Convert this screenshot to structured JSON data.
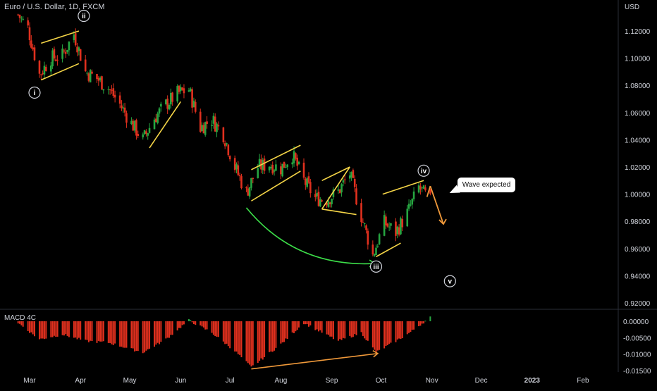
{
  "header": {
    "symbol_title": "Euro / U.S. Dollar, 1D, FXCM",
    "currency": "USD"
  },
  "indicator": {
    "name": "MACD 4C"
  },
  "callout": {
    "text": "Wave expected"
  },
  "wave_labels": [
    "i",
    "ii",
    "iii",
    "iv",
    "v"
  ],
  "chart_data": [
    {
      "type": "candlestick",
      "title": "Euro / U.S. Dollar, 1D, FXCM",
      "ylabel": "USD",
      "ylim": [
        0.914,
        1.135
      ],
      "yticks": [
        "1.12000",
        "1.10000",
        "1.08000",
        "1.06000",
        "1.04000",
        "1.02000",
        "1.00000",
        "0.98000",
        "0.96000",
        "0.94000",
        "0.92000"
      ],
      "xticks": [
        "Mar",
        "Apr",
        "May",
        "Jun",
        "Jul",
        "Aug",
        "Sep",
        "Oct",
        "Nov",
        "Dec",
        "2023",
        "Feb"
      ],
      "close_path": [
        [
          "2022-02-22",
          1.132
        ],
        [
          "2022-02-28",
          1.122
        ],
        [
          "2022-03-07",
          1.088
        ],
        [
          "2022-03-14",
          1.1
        ],
        [
          "2022-03-21",
          1.102
        ],
        [
          "2022-03-28",
          1.118
        ],
        [
          "2022-04-04",
          1.09
        ],
        [
          "2022-04-11",
          1.085
        ],
        [
          "2022-04-18",
          1.078
        ],
        [
          "2022-04-25",
          1.066
        ],
        [
          "2022-05-02",
          1.052
        ],
        [
          "2022-05-09",
          1.04
        ],
        [
          "2022-05-16",
          1.056
        ],
        [
          "2022-05-23",
          1.066
        ],
        [
          "2022-05-30",
          1.074
        ],
        [
          "2022-06-06",
          1.077
        ],
        [
          "2022-06-13",
          1.049
        ],
        [
          "2022-06-20",
          1.055
        ],
        [
          "2022-06-27",
          1.044
        ],
        [
          "2022-07-04",
          1.02
        ],
        [
          "2022-07-11",
          1.001
        ],
        [
          "2022-07-18",
          1.02
        ],
        [
          "2022-07-25",
          1.022
        ],
        [
          "2022-08-01",
          1.019
        ],
        [
          "2022-08-08",
          1.029
        ],
        [
          "2022-08-15",
          1.01
        ],
        [
          "2022-08-22",
          0.997
        ],
        [
          "2022-08-29",
          0.996
        ],
        [
          "2022-09-05",
          1.002
        ],
        [
          "2022-09-12",
          1.015
        ],
        [
          "2022-09-19",
          0.984
        ],
        [
          "2022-09-26",
          0.955
        ],
        [
          "2022-10-03",
          0.979
        ],
        [
          "2022-10-10",
          0.972
        ],
        [
          "2022-10-17",
          0.986
        ],
        [
          "2022-10-24",
          1.005
        ],
        [
          "2022-10-31",
          0.995
        ]
      ],
      "annotations": [
        "Wave expected"
      ]
    },
    {
      "type": "bar",
      "title": "MACD 4C",
      "ylim": [
        -0.0155,
        0.0015
      ],
      "yticks": [
        "0.00000",
        "-0.00500",
        "-0.01000",
        "-0.01500"
      ],
      "histogram_path": [
        [
          "2022-02-22",
          -0.0005
        ],
        [
          "2022-03-07",
          -0.0055
        ],
        [
          "2022-03-21",
          -0.004
        ],
        [
          "2022-04-04",
          -0.006
        ],
        [
          "2022-04-18",
          -0.0065
        ],
        [
          "2022-05-09",
          -0.0095
        ],
        [
          "2022-05-23",
          -0.0055
        ],
        [
          "2022-06-06",
          0.0003
        ],
        [
          "2022-06-20",
          -0.0035
        ],
        [
          "2022-07-04",
          -0.009
        ],
        [
          "2022-07-14",
          -0.014
        ],
        [
          "2022-08-01",
          -0.007
        ],
        [
          "2022-08-15",
          -0.0005
        ],
        [
          "2022-09-05",
          -0.006
        ],
        [
          "2022-09-19",
          -0.0035
        ],
        [
          "2022-09-28",
          -0.0095
        ],
        [
          "2022-10-17",
          -0.004
        ],
        [
          "2022-10-31",
          0.0012
        ]
      ]
    }
  ],
  "colors": {
    "background": "#000000",
    "bull": "#26a641",
    "bear": "#e0301e",
    "trendline": "#f5d547",
    "projection_arrow": "#f0993a",
    "curve_arrow": "#3de04a",
    "divergence_line": "#f0993a",
    "text": "#d1d4dc",
    "divider": "#2a2e39"
  }
}
